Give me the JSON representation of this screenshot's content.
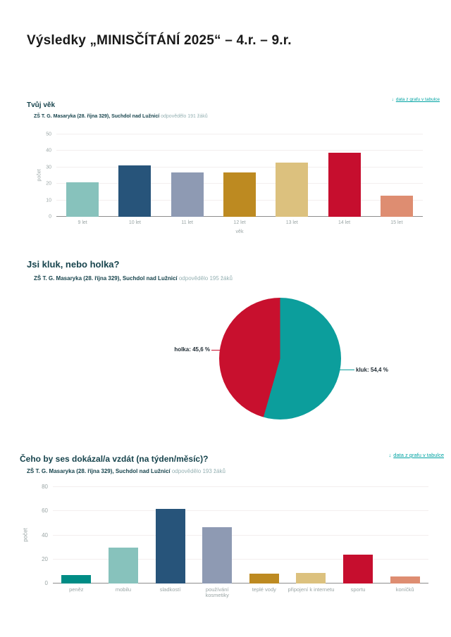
{
  "page": {
    "title": "Výsledky „MINISČÍTÁNÍ 2025“ – 4.r. – 9.r.",
    "link_label": "data z grafu v tabulce",
    "download_icon": "↓"
  },
  "colors": {
    "title_dark_teal": "#17444d",
    "link_teal": "#00a3a3",
    "axis_gray": "#9aa5a5",
    "grid": "#f3eeee",
    "baseline": "#8d8d8d"
  },
  "chart_data": [
    {
      "type": "bar",
      "title": "Tvůj věk",
      "subtitle_bold": "ZŠ T. G. Masaryka (28. října 329), Suchdol nad Lužnicí",
      "subtitle_light": "odpovědělo 191 žáků",
      "categories": [
        "9 let",
        "10 let",
        "11 let",
        "12 let",
        "13 let",
        "14 let",
        "15 let"
      ],
      "values": [
        21,
        31,
        27,
        27,
        33,
        39,
        13
      ],
      "colors": [
        "#87c2bc",
        "#27547a",
        "#8e9ab3",
        "#bd8a21",
        "#dcc17e",
        "#c60e2e",
        "#de8d71"
      ],
      "xlabel": "věk",
      "ylabel": "počet",
      "ylim": [
        0,
        50
      ],
      "ytick_step": 10,
      "grid": true,
      "legend": "none"
    },
    {
      "type": "pie",
      "title": "Jsi kluk, nebo holka?",
      "subtitle_bold": "ZŠ T. G. Masaryka (28. října 329), Suchdol nad Lužnicí",
      "subtitle_light": "odpovědělo 195 žáků",
      "slices": [
        {
          "label": "kluk",
          "value": 54.4,
          "color": "#0c9e9c",
          "label_text": "kluk: 54,4 %"
        },
        {
          "label": "holka",
          "value": 45.6,
          "color": "#c8102e",
          "label_text": "holka: 45,6 %"
        }
      ],
      "start_angle_deg": 0,
      "direction": "clockwise"
    },
    {
      "type": "bar",
      "title": "Čeho by ses dokázal/a vzdát (na týden/měsíc)?",
      "subtitle_bold": "ZŠ T. G. Masaryka (28. října 329), Suchdol nad Lužnicí",
      "subtitle_light": "odpovědělo 193 žáků",
      "categories": [
        "peněz",
        "mobilu",
        "sladkostí",
        "používání kosmetiky",
        "teplé vody",
        "připojení k internetu",
        "sportu",
        "koníčků"
      ],
      "values": [
        7,
        30,
        62,
        47,
        8,
        9,
        24,
        6
      ],
      "colors": [
        "#008c85",
        "#87c2bc",
        "#27547a",
        "#8e9ab3",
        "#bd8a21",
        "#dcc17e",
        "#c60e2e",
        "#de8d71"
      ],
      "xlabel": "",
      "ylabel": "počet",
      "ylim": [
        0,
        80
      ],
      "ytick_step": 20,
      "grid": true,
      "legend": "none"
    }
  ]
}
